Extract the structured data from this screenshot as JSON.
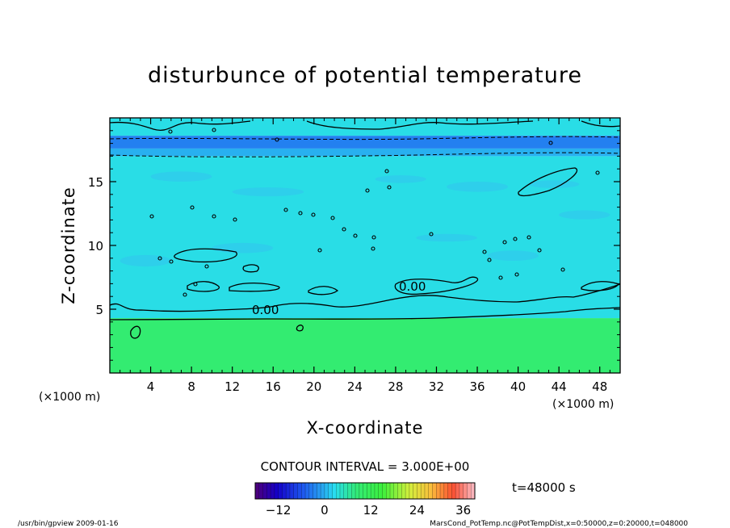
{
  "chart_data": {
    "type": "heatmap",
    "title": "disturbunce of potential temperature",
    "xlabel": "X-coordinate",
    "ylabel": "Z-coordinate",
    "x_unit": "(×1000 m)",
    "z_unit": "(×1000 m)",
    "xlim": [
      0,
      50
    ],
    "ylim": [
      0,
      20
    ],
    "x_ticks": [
      4,
      8,
      12,
      16,
      20,
      24,
      28,
      32,
      36,
      40,
      44,
      48
    ],
    "y_ticks": [
      5,
      10,
      15
    ],
    "contour_interval": "CONTOUR INTERVAL = 3.000E+00",
    "contour_labels": [
      "0.00",
      "0.00"
    ],
    "time_label": "t=48000 s",
    "colorbar": {
      "min": -18,
      "max": 39,
      "ticks": [
        -12,
        0,
        12,
        24,
        36
      ]
    },
    "layers": [
      {
        "z_from": 0,
        "z_to": 4.3,
        "value": 9
      },
      {
        "z_from": 4.3,
        "z_to": 17.0,
        "value": 3
      },
      {
        "z_from": 17.0,
        "z_to": 17.6,
        "value": 0
      },
      {
        "z_from": 17.6,
        "z_to": 18.6,
        "value": -3
      },
      {
        "z_from": 18.6,
        "z_to": 20.0,
        "value": 3
      }
    ]
  },
  "footer": {
    "left": "/usr/bin/gpview  2009-01-16",
    "right": "MarsCond_PotTemp.nc@PotTempDist,x=0:50000,z=0:20000,t=048000"
  },
  "colors": {
    "green": "#33ee66",
    "cyan": "#22ddee",
    "blue_band": "#2299f0",
    "light_blue": "#33bbee",
    "contour": "#000000"
  }
}
